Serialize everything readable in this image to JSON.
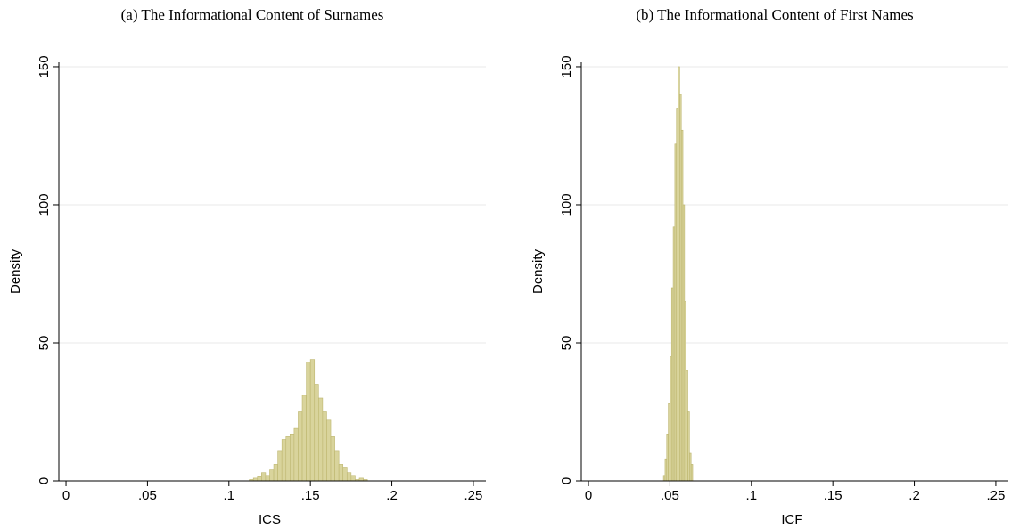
{
  "chart_data": [
    {
      "type": "histogram",
      "title": "(a) The Informational Content of Surnames",
      "x_label": "ICS",
      "y_label": "Density",
      "bins": [
        0.1125,
        0.115,
        0.1175,
        0.12,
        0.1225,
        0.125,
        0.1275,
        0.13,
        0.1325,
        0.135,
        0.1375,
        0.14,
        0.1425,
        0.145,
        0.1475,
        0.15,
        0.1525,
        0.155,
        0.1575,
        0.16,
        0.1625,
        0.165,
        0.1675,
        0.17,
        0.1725,
        0.175,
        0.1775,
        0.18,
        0.1825,
        0.185
      ],
      "values": [
        0.5,
        1,
        1.5,
        3,
        2,
        4,
        6,
        11,
        15,
        16,
        17,
        19,
        25,
        31,
        43,
        44,
        35,
        30,
        25,
        22,
        16,
        11,
        6,
        5,
        3,
        2,
        0.5,
        1,
        0.5
      ],
      "color": "#d9d49c",
      "edge_color": "#bdb66f",
      "xlim": [
        -0.0044,
        0.2577
      ],
      "xticks": [
        0,
        {
          "value": 0.05,
          "label": ".05"
        },
        {
          "value": 0.1,
          "label": ".1"
        },
        {
          "value": 0.15,
          "label": ".15"
        },
        {
          "value": 0.2,
          "label": ".2"
        },
        {
          "value": 0.25,
          "label": ".25"
        }
      ],
      "ylim": [
        0,
        151.6
      ],
      "yticks": [
        0,
        50,
        100,
        150
      ],
      "grid": true
    },
    {
      "type": "histogram",
      "title": "(b) The Informational Content of First Names",
      "x_label": "ICF",
      "y_label": "Density",
      "bins": [
        0.046,
        0.047,
        0.048,
        0.049,
        0.05,
        0.051,
        0.052,
        0.053,
        0.054,
        0.055,
        0.056,
        0.057,
        0.058,
        0.059,
        0.06,
        0.061,
        0.062,
        0.063,
        0.064
      ],
      "values": [
        2,
        8,
        17,
        28,
        45,
        70,
        92,
        122,
        135,
        150,
        140,
        127,
        100,
        65,
        40,
        25,
        10,
        6
      ],
      "color": "#d9d49c",
      "edge_color": "#bdb66f",
      "xlim": [
        -0.0044,
        0.2577
      ],
      "xticks": [
        0,
        {
          "value": 0.05,
          "label": ".05"
        },
        {
          "value": 0.1,
          "label": ".1"
        },
        {
          "value": 0.15,
          "label": ".15"
        },
        {
          "value": 0.2,
          "label": ".2"
        },
        {
          "value": 0.25,
          "label": ".25"
        }
      ],
      "ylim": [
        0,
        151.6
      ],
      "yticks": [
        0,
        50,
        100,
        150
      ],
      "grid": true
    }
  ]
}
